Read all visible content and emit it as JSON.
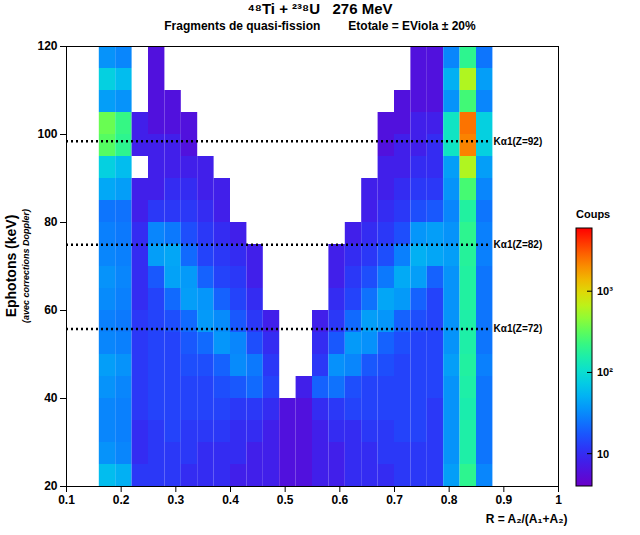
{
  "chart_data": {
    "type": "heatmap",
    "title": "⁴⁸Ti + ²³⁸U   276 MeV",
    "subtitle": "Fragments de quasi-fission",
    "condition": "Etotale = EViola ± 20%",
    "xlabel": "R = A₂/(A₁+A₂)",
    "ylabel": "Ephotons (keV)",
    "ylabel_note": "(avec corrections Doppler)",
    "xlim": [
      0.1,
      1
    ],
    "xticks": [
      0.1,
      0.2,
      0.3,
      0.4,
      0.5,
      0.6,
      0.7,
      0.8,
      0.9,
      1
    ],
    "ylim": [
      20,
      120
    ],
    "yticks": [
      20,
      40,
      60,
      80,
      100,
      120
    ],
    "x_bins": [
      0.16,
      0.19,
      0.22,
      0.25,
      0.28,
      0.31,
      0.34,
      0.37,
      0.4,
      0.43,
      0.46,
      0.49,
      0.52,
      0.55,
      0.58,
      0.61,
      0.64,
      0.67,
      0.7,
      0.73,
      0.76,
      0.79,
      0.82,
      0.85,
      0.88
    ],
    "y_bins": [
      20,
      25,
      30,
      35,
      40,
      45,
      50,
      55,
      60,
      65,
      70,
      75,
      80,
      85,
      90,
      95,
      100,
      105,
      110,
      115,
      120
    ],
    "counts": [
      [
        60,
        50,
        12,
        12,
        12,
        10,
        10,
        10,
        8,
        8,
        8,
        6,
        6,
        8,
        8,
        10,
        10,
        10,
        12,
        12,
        12,
        40,
        200,
        30
      ],
      [
        35,
        30,
        10,
        12,
        12,
        12,
        10,
        10,
        10,
        8,
        8,
        6,
        6,
        8,
        8,
        10,
        10,
        12,
        12,
        12,
        12,
        35,
        160,
        25
      ],
      [
        30,
        28,
        10,
        12,
        14,
        12,
        12,
        12,
        10,
        10,
        8,
        6,
        6,
        8,
        10,
        10,
        12,
        12,
        14,
        14,
        12,
        35,
        160,
        25
      ],
      [
        30,
        28,
        12,
        14,
        14,
        14,
        14,
        14,
        12,
        12,
        10,
        6,
        6,
        10,
        12,
        14,
        14,
        14,
        14,
        14,
        12,
        35,
        150,
        25
      ],
      [
        35,
        30,
        12,
        14,
        14,
        14,
        14,
        16,
        18,
        22,
        14,
        null,
        8,
        20,
        24,
        16,
        14,
        14,
        14,
        14,
        14,
        35,
        160,
        25
      ],
      [
        40,
        35,
        12,
        14,
        14,
        16,
        16,
        20,
        32,
        26,
        12,
        null,
        null,
        12,
        34,
        30,
        18,
        16,
        14,
        14,
        14,
        40,
        170,
        28
      ],
      [
        30,
        28,
        12,
        14,
        14,
        18,
        22,
        36,
        30,
        16,
        10,
        null,
        null,
        10,
        18,
        38,
        34,
        20,
        16,
        14,
        14,
        35,
        160,
        25
      ],
      [
        28,
        26,
        12,
        14,
        16,
        22,
        38,
        32,
        18,
        12,
        8,
        null,
        null,
        8,
        12,
        22,
        40,
        36,
        20,
        16,
        14,
        35,
        160,
        25
      ],
      [
        32,
        28,
        10,
        14,
        22,
        40,
        36,
        20,
        14,
        10,
        null,
        null,
        null,
        null,
        10,
        14,
        24,
        44,
        38,
        20,
        14,
        35,
        170,
        25
      ],
      [
        35,
        30,
        10,
        18,
        42,
        38,
        20,
        14,
        12,
        8,
        null,
        null,
        null,
        null,
        8,
        12,
        16,
        26,
        46,
        40,
        20,
        35,
        170,
        25
      ],
      [
        30,
        28,
        10,
        40,
        44,
        22,
        14,
        12,
        10,
        8,
        null,
        null,
        null,
        null,
        8,
        10,
        12,
        16,
        28,
        50,
        44,
        40,
        180,
        28
      ],
      [
        28,
        26,
        10,
        30,
        26,
        16,
        12,
        10,
        8,
        null,
        null,
        null,
        null,
        null,
        null,
        8,
        10,
        12,
        16,
        36,
        40,
        35,
        200,
        28
      ],
      [
        25,
        24,
        8,
        12,
        12,
        12,
        10,
        8,
        null,
        null,
        null,
        null,
        null,
        null,
        null,
        null,
        8,
        10,
        12,
        16,
        18,
        30,
        170,
        25
      ],
      [
        45,
        40,
        8,
        8,
        10,
        10,
        8,
        8,
        null,
        null,
        null,
        null,
        null,
        null,
        null,
        null,
        8,
        8,
        10,
        12,
        12,
        35,
        260,
        30
      ],
      [
        80,
        60,
        null,
        8,
        8,
        8,
        8,
        null,
        null,
        null,
        null,
        null,
        null,
        null,
        null,
        null,
        null,
        8,
        8,
        10,
        10,
        40,
        600,
        40
      ],
      [
        300,
        200,
        8,
        8,
        8,
        6,
        null,
        null,
        null,
        null,
        null,
        null,
        null,
        null,
        null,
        null,
        null,
        6,
        8,
        8,
        10,
        120,
        2200,
        80
      ],
      [
        350,
        220,
        8,
        6,
        6,
        6,
        null,
        null,
        null,
        null,
        null,
        null,
        null,
        null,
        null,
        null,
        null,
        6,
        6,
        8,
        8,
        120,
        2500,
        80
      ],
      [
        40,
        35,
        null,
        6,
        6,
        null,
        null,
        null,
        null,
        null,
        null,
        null,
        null,
        null,
        null,
        null,
        null,
        null,
        6,
        6,
        6,
        35,
        250,
        30
      ],
      [
        80,
        60,
        null,
        6,
        null,
        null,
        null,
        null,
        null,
        null,
        null,
        null,
        null,
        null,
        null,
        null,
        null,
        null,
        null,
        6,
        6,
        50,
        600,
        40
      ],
      [
        35,
        30,
        null,
        6,
        null,
        null,
        null,
        null,
        null,
        null,
        null,
        null,
        null,
        null,
        null,
        null,
        null,
        null,
        null,
        6,
        6,
        30,
        200,
        25
      ]
    ],
    "colorbar": {
      "label": "Coups",
      "log": true,
      "lim": [
        4,
        6000
      ],
      "ticks": [
        10,
        {
          "value": 100,
          "label": "10²"
        },
        {
          "value": 1000,
          "label": "10³"
        }
      ]
    },
    "annotations": [
      {
        "y": 98.44,
        "label": "Kα1(Z=92)"
      },
      {
        "y": 74.97,
        "label": "Kα1(Z=82)"
      },
      {
        "y": 55.79,
        "label": "Kα1(Z=72)"
      }
    ],
    "line_style": "dotted"
  }
}
